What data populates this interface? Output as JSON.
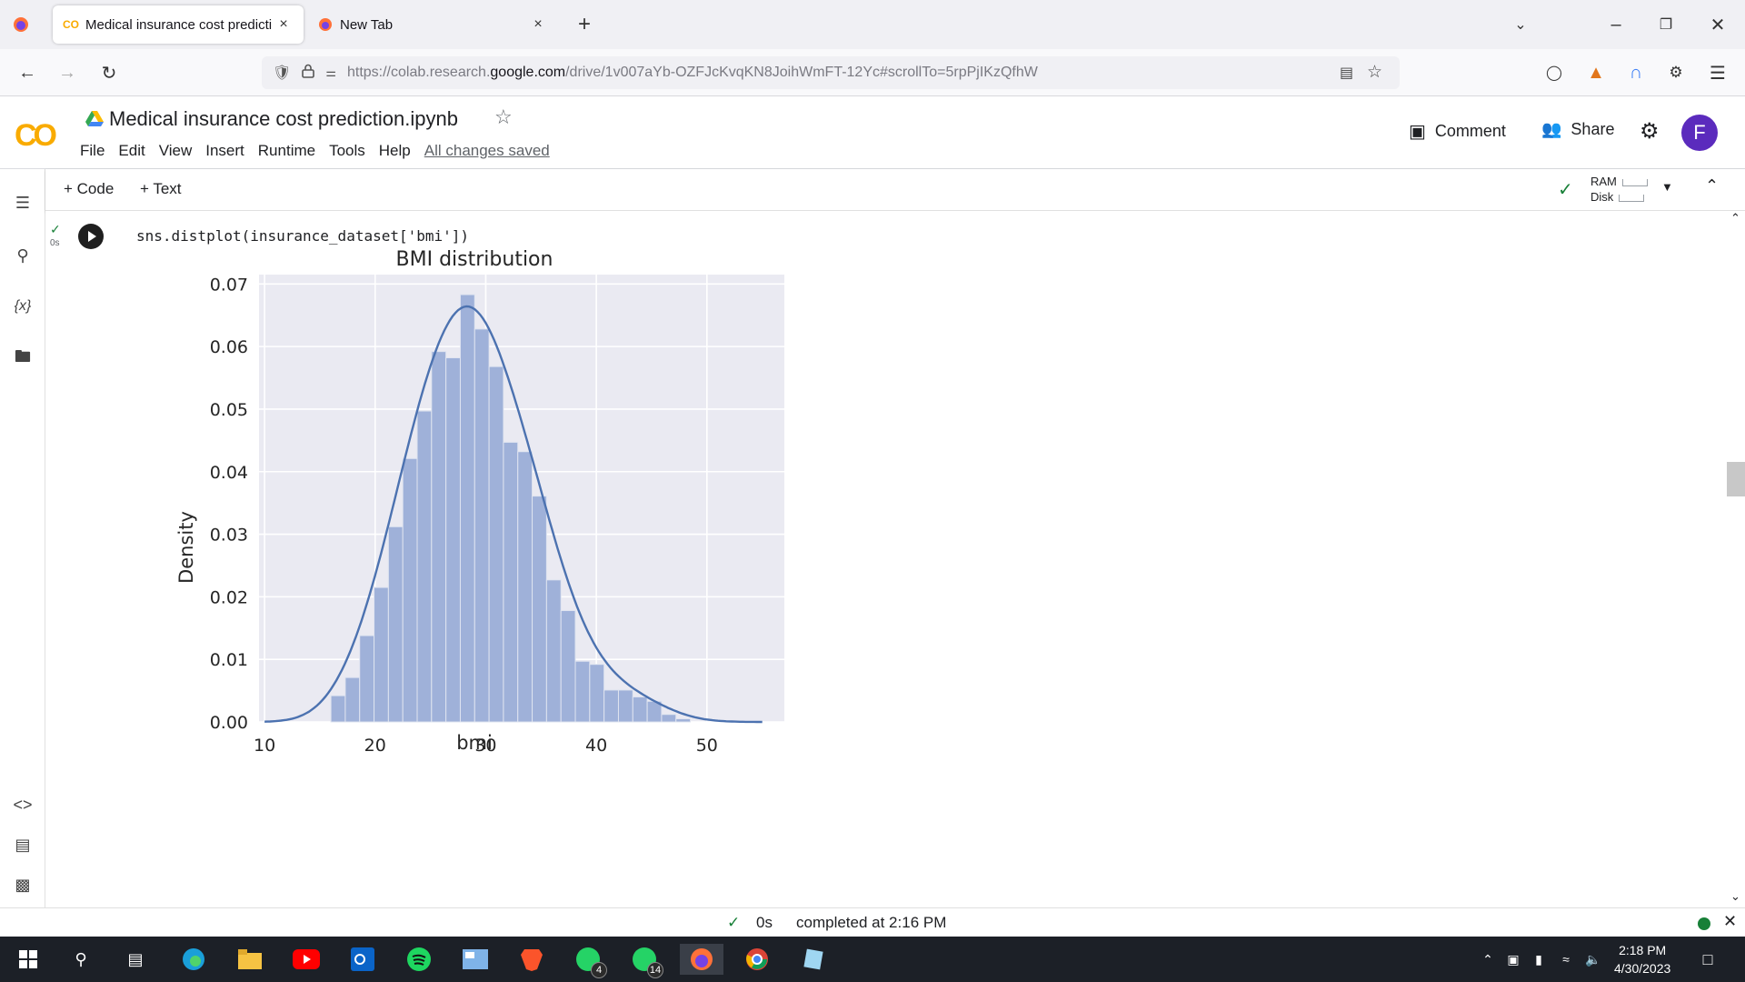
{
  "browser": {
    "tabs": [
      {
        "label": "Medical insurance cost predicti",
        "close": "×"
      },
      {
        "label": "New Tab",
        "close": "×"
      }
    ],
    "new_tab": "+",
    "url": {
      "prefix": "https://colab.research.",
      "host": "google.com",
      "suffix": "/drive/1v007aYb-OZFJcKvqKN8JoihWmFT-12Yc#scrollTo=5rpPjIKzQfhW"
    }
  },
  "colab": {
    "logo": "CO",
    "title": "Medical insurance cost prediction.ipynb",
    "menu": [
      "File",
      "Edit",
      "View",
      "Insert",
      "Runtime",
      "Tools",
      "Help"
    ],
    "saved_status": "All changes saved",
    "comment_label": "Comment",
    "share_label": "Share",
    "avatar_letter": "F",
    "add_code": "+ Code",
    "add_text": "+ Text",
    "ram_label": "RAM",
    "disk_label": "Disk"
  },
  "cell": {
    "code": "sns.distplot(insurance_dataset['bmi'])",
    "exec_time": "0s"
  },
  "status": {
    "duration": "0s",
    "message": "completed at 2:16 PM"
  },
  "taskbar": {
    "time": "2:18 PM",
    "date": "4/30/2023",
    "badges": [
      "4",
      "14"
    ]
  },
  "chart_data": {
    "type": "bar",
    "title": "BMI distribution",
    "xlabel": "bmi",
    "ylabel": "Density",
    "xlim": [
      9.5,
      57
    ],
    "ylim": [
      0,
      0.0715
    ],
    "xticks": [
      10,
      20,
      30,
      40,
      50
    ],
    "yticks": [
      "0.00",
      "0.01",
      "0.02",
      "0.03",
      "0.04",
      "0.05",
      "0.06",
      "0.07"
    ],
    "bin_edges": [
      16.0,
      17.3,
      18.6,
      19.9,
      21.2,
      22.5,
      23.8,
      25.1,
      26.4,
      27.7,
      29.0,
      30.3,
      31.6,
      32.9,
      34.2,
      35.5,
      36.8,
      38.1,
      39.4,
      40.7,
      42.0,
      43.3,
      44.6,
      45.9,
      47.2,
      48.5
    ],
    "densities": [
      0.0042,
      0.0071,
      0.0138,
      0.0215,
      0.0312,
      0.0421,
      0.0497,
      0.0592,
      0.0582,
      0.0683,
      0.0628,
      0.0568,
      0.0447,
      0.0432,
      0.0361,
      0.0227,
      0.0178,
      0.0097,
      0.0092,
      0.0051,
      0.0051,
      0.004,
      0.0033,
      0.0012,
      0.0005
    ],
    "kde_label": "",
    "grid": true,
    "bar_color": "#9fb1d9",
    "line_color": "#4c72b0",
    "bg_color": "#eaeaf2"
  }
}
